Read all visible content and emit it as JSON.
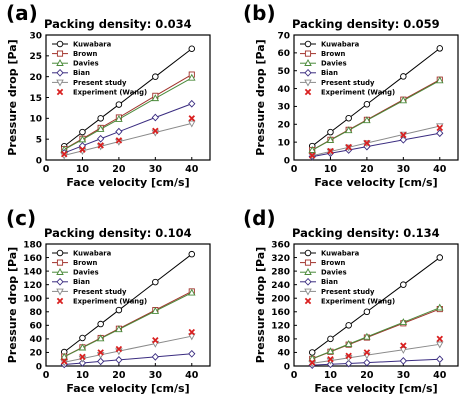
{
  "figure": {
    "x_axis_label": "Face velocity [cm/s]",
    "y_axis_label": "Pressure drop [Pa]"
  },
  "chart_data": [
    {
      "type": "line",
      "panel_label": "(a)",
      "title": "Packing density: 0.034",
      "xlabel": "Face velocity [cm/s]",
      "ylabel": "Pressure drop [Pa]",
      "xlim": [
        0,
        45
      ],
      "ylim": [
        0,
        30
      ],
      "xticks": [
        0,
        10,
        20,
        30,
        40
      ],
      "yticks": [
        0,
        5,
        10,
        15,
        20,
        25,
        30
      ],
      "x": [
        5,
        10,
        15,
        20,
        30,
        40
      ],
      "legend_position": "top-left",
      "grid": false,
      "series": [
        {
          "name": "Kuwabara",
          "color": "#000000",
          "marker": "circle",
          "values": [
            3.3,
            6.7,
            10.0,
            13.3,
            20.0,
            26.7
          ]
        },
        {
          "name": "Brown",
          "color": "#a0312a",
          "marker": "square",
          "values": [
            2.6,
            5.1,
            7.7,
            10.2,
            15.4,
            20.5
          ]
        },
        {
          "name": "Davies",
          "color": "#4a8a3a",
          "marker": "triangle",
          "values": [
            2.5,
            4.9,
            7.4,
            9.8,
            14.8,
            19.7
          ]
        },
        {
          "name": "Bian",
          "color": "#3a2c80",
          "marker": "diamond",
          "values": [
            1.7,
            3.4,
            5.1,
            6.8,
            10.2,
            13.5
          ]
        },
        {
          "name": "Present study",
          "color": "#8a8a8a",
          "marker": "triangle-down",
          "values": [
            1.1,
            2.2,
            3.3,
            4.4,
            6.6,
            8.8
          ]
        },
        {
          "name": "Experiment (Wang)",
          "color": "#d92020",
          "marker": "x",
          "values": [
            1.4,
            2.5,
            3.5,
            4.7,
            7.0,
            10.0
          ]
        }
      ]
    },
    {
      "type": "line",
      "panel_label": "(b)",
      "title": "Packing density: 0.059",
      "xlabel": "Face velocity [cm/s]",
      "ylabel": "Pressure drop [Pa]",
      "xlim": [
        0,
        45
      ],
      "ylim": [
        0,
        70
      ],
      "xticks": [
        0,
        10,
        20,
        30,
        40
      ],
      "yticks": [
        0,
        10,
        20,
        30,
        40,
        50,
        60,
        70
      ],
      "x": [
        5,
        10,
        15,
        20,
        30,
        40
      ],
      "legend_position": "top-left",
      "grid": false,
      "series": [
        {
          "name": "Kuwabara",
          "color": "#000000",
          "marker": "circle",
          "values": [
            7.8,
            15.6,
            23.4,
            31.2,
            46.8,
            62.5
          ]
        },
        {
          "name": "Brown",
          "color": "#a0312a",
          "marker": "square",
          "values": [
            5.6,
            11.3,
            16.9,
            22.5,
            33.8,
            45.0
          ]
        },
        {
          "name": "Davies",
          "color": "#4a8a3a",
          "marker": "triangle",
          "values": [
            5.5,
            11.1,
            16.6,
            22.2,
            33.3,
            44.5
          ]
        },
        {
          "name": "Bian",
          "color": "#3a2c80",
          "marker": "diamond",
          "values": [
            1.9,
            3.8,
            5.6,
            7.5,
            11.3,
            15.0
          ]
        },
        {
          "name": "Present study",
          "color": "#8a8a8a",
          "marker": "triangle-down",
          "values": [
            2.4,
            4.8,
            7.1,
            9.5,
            14.3,
            19.0
          ]
        },
        {
          "name": "Experiment (Wang)",
          "color": "#d92020",
          "marker": "x",
          "values": [
            2.5,
            5.0,
            7.2,
            9.5,
            14.0,
            18.0
          ]
        }
      ]
    },
    {
      "type": "line",
      "panel_label": "(c)",
      "title": "Packing density: 0.104",
      "xlabel": "Face velocity [cm/s]",
      "ylabel": "Pressure drop [Pa]",
      "xlim": [
        0,
        45
      ],
      "ylim": [
        0,
        180
      ],
      "xticks": [
        0,
        10,
        20,
        30,
        40
      ],
      "yticks": [
        0,
        20,
        40,
        60,
        80,
        100,
        120,
        140,
        160,
        180
      ],
      "x": [
        5,
        10,
        15,
        20,
        30,
        40
      ],
      "legend_position": "top-left",
      "grid": false,
      "series": [
        {
          "name": "Kuwabara",
          "color": "#000000",
          "marker": "circle",
          "values": [
            20.6,
            41.3,
            61.9,
            82.5,
            123.8,
            165.0
          ]
        },
        {
          "name": "Brown",
          "color": "#a0312a",
          "marker": "square",
          "values": [
            13.8,
            27.5,
            41.3,
            55.0,
            82.5,
            110.0
          ]
        },
        {
          "name": "Davies",
          "color": "#4a8a3a",
          "marker": "triangle",
          "values": [
            13.5,
            27.0,
            40.5,
            54.0,
            81.0,
            108.0
          ]
        },
        {
          "name": "Bian",
          "color": "#3a2c80",
          "marker": "diamond",
          "values": [
            2.3,
            4.5,
            6.8,
            9.0,
            13.5,
            18.0
          ]
        },
        {
          "name": "Present study",
          "color": "#8a8a8a",
          "marker": "triangle-down",
          "values": [
            5.5,
            11.0,
            16.5,
            22.0,
            33.0,
            44.0
          ]
        },
        {
          "name": "Experiment (Wang)",
          "color": "#d92020",
          "marker": "x",
          "values": [
            7.0,
            13.5,
            20.0,
            25.0,
            38.0,
            50.0
          ]
        }
      ]
    },
    {
      "type": "line",
      "panel_label": "(d)",
      "title": "Packing density: 0.134",
      "xlabel": "Face velocity [cm/s]",
      "ylabel": "Pressure drop [Pa]",
      "xlim": [
        0,
        45
      ],
      "ylim": [
        0,
        360
      ],
      "xticks": [
        0,
        10,
        20,
        30,
        40
      ],
      "yticks": [
        0,
        40,
        80,
        120,
        160,
        200,
        240,
        280,
        320,
        360
      ],
      "x": [
        5,
        10,
        15,
        20,
        30,
        40
      ],
      "legend_position": "top-left",
      "grid": false,
      "series": [
        {
          "name": "Kuwabara",
          "color": "#000000",
          "marker": "circle",
          "values": [
            40,
            80,
            120,
            160,
            240,
            320
          ]
        },
        {
          "name": "Brown",
          "color": "#a0312a",
          "marker": "square",
          "values": [
            21,
            42,
            63,
            84,
            126,
            168
          ]
        },
        {
          "name": "Davies",
          "color": "#4a8a3a",
          "marker": "triangle",
          "values": [
            21.5,
            43,
            64.5,
            86,
            129,
            172
          ]
        },
        {
          "name": "Bian",
          "color": "#3a2c80",
          "marker": "diamond",
          "values": [
            2.5,
            5,
            7.5,
            10,
            15,
            20
          ]
        },
        {
          "name": "Present study",
          "color": "#8a8a8a",
          "marker": "triangle-down",
          "values": [
            8,
            16,
            24,
            32,
            48,
            64
          ]
        },
        {
          "name": "Experiment (Wang)",
          "color": "#d92020",
          "marker": "x",
          "values": [
            10,
            20,
            30,
            40,
            60,
            80
          ]
        }
      ]
    }
  ]
}
